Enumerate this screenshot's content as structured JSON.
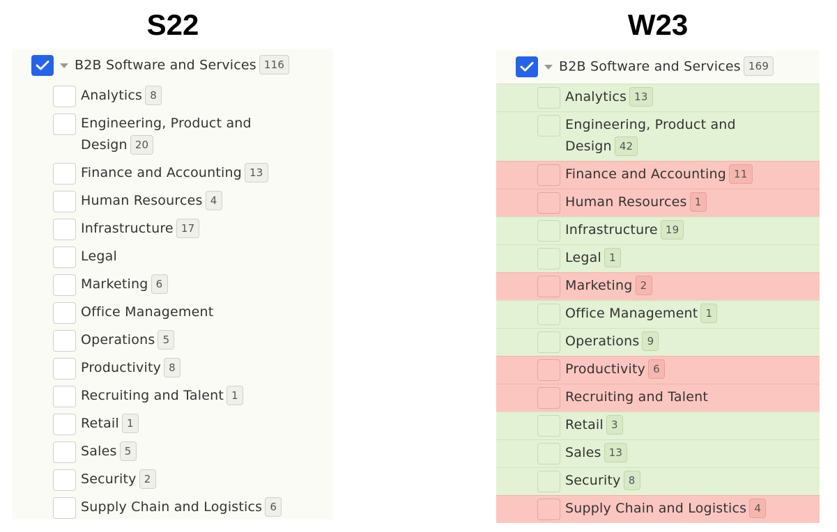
{
  "headings": {
    "left": "S22",
    "right": "W23"
  },
  "colors": {
    "checked": "#2563eb",
    "added": "#e3f1d4",
    "removed": "#fcc6c0",
    "panel": "#fbfbf5"
  },
  "left": {
    "parent": {
      "label": "B2B Software and Services",
      "count": "116",
      "checked": true
    },
    "items": [
      {
        "line1": "Analytics",
        "line2": "",
        "count": "8"
      },
      {
        "line1": "Engineering, Product and",
        "line2": "Design",
        "count": "20"
      },
      {
        "line1": "Finance and Accounting",
        "line2": "",
        "count": "13"
      },
      {
        "line1": "Human Resources",
        "line2": "",
        "count": "4"
      },
      {
        "line1": "Infrastructure",
        "line2": "",
        "count": "17"
      },
      {
        "line1": "Legal",
        "line2": "",
        "count": ""
      },
      {
        "line1": "Marketing",
        "line2": "",
        "count": "6"
      },
      {
        "line1": "Office Management",
        "line2": "",
        "count": ""
      },
      {
        "line1": "Operations",
        "line2": "",
        "count": "5"
      },
      {
        "line1": "Productivity",
        "line2": "",
        "count": "8"
      },
      {
        "line1": "Recruiting and Talent",
        "line2": "",
        "count": "1"
      },
      {
        "line1": "Retail",
        "line2": "",
        "count": "1"
      },
      {
        "line1": "Sales",
        "line2": "",
        "count": "5"
      },
      {
        "line1": "Security",
        "line2": "",
        "count": "2"
      },
      {
        "line1": "Supply Chain and Logistics",
        "line2": "",
        "count": "6"
      }
    ]
  },
  "right": {
    "parent": {
      "label": "B2B Software and Services",
      "count": "169",
      "checked": true
    },
    "items": [
      {
        "line1": "Analytics",
        "line2": "",
        "count": "13",
        "change": "added"
      },
      {
        "line1": "Engineering, Product and",
        "line2": "Design",
        "count": "42",
        "change": "added"
      },
      {
        "line1": "Finance and Accounting",
        "line2": "",
        "count": "11",
        "change": "removed"
      },
      {
        "line1": "Human Resources",
        "line2": "",
        "count": "1",
        "change": "removed"
      },
      {
        "line1": "Infrastructure",
        "line2": "",
        "count": "19",
        "change": "added"
      },
      {
        "line1": "Legal",
        "line2": "",
        "count": "1",
        "change": "added"
      },
      {
        "line1": "Marketing",
        "line2": "",
        "count": "2",
        "change": "removed"
      },
      {
        "line1": "Office Management",
        "line2": "",
        "count": "1",
        "change": "added"
      },
      {
        "line1": "Operations",
        "line2": "",
        "count": "9",
        "change": "added"
      },
      {
        "line1": "Productivity",
        "line2": "",
        "count": "6",
        "change": "removed"
      },
      {
        "line1": "Recruiting and Talent",
        "line2": "",
        "count": "",
        "change": "removed"
      },
      {
        "line1": "Retail",
        "line2": "",
        "count": "3",
        "change": "added"
      },
      {
        "line1": "Sales",
        "line2": "",
        "count": "13",
        "change": "added"
      },
      {
        "line1": "Security",
        "line2": "",
        "count": "8",
        "change": "added"
      },
      {
        "line1": "Supply Chain and Logistics",
        "line2": "",
        "count": "4",
        "change": "removed"
      }
    ]
  }
}
